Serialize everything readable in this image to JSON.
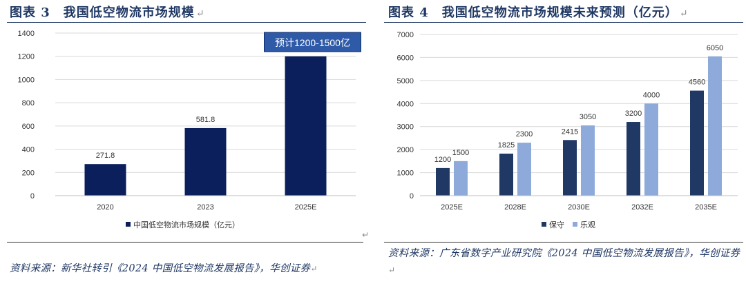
{
  "left": {
    "figure_title": "图表 3　我国低空物流市场规模",
    "source": "资料来源：新华社转引《2024 中国低空物流发展报告》，华创证券",
    "callout": "预计1200-1500亿"
  },
  "right": {
    "figure_title": "图表 4　我国低空物流市场规模未来预测（亿元）",
    "source": "资料来源：广东省数字产业研究院《2024 中国低空物流发展报告》，华创证券"
  },
  "colors": {
    "navy": "#0b1f5c",
    "dark_blue": "#1f3864",
    "light_blue": "#8eaadb",
    "callout_bg": "#2e5aa8"
  },
  "chart_data": [
    {
      "type": "bar",
      "categories": [
        "2020",
        "2023",
        "2025E"
      ],
      "series": [
        {
          "name": "中国低空物流市场规模（亿元）",
          "values": [
            271.8,
            581.8,
            1200
          ]
        }
      ],
      "data_labels": [
        "271.8",
        "581.8",
        ""
      ],
      "yticks": [
        "0",
        "200",
        "400",
        "600",
        "800",
        "1000",
        "1200",
        "1400"
      ],
      "ylim": [
        0,
        1400
      ],
      "grid": true,
      "legend": "bottom"
    },
    {
      "type": "bar",
      "categories": [
        "2025E",
        "2028E",
        "2030E",
        "2032E",
        "2035E"
      ],
      "series": [
        {
          "name": "保守",
          "values": [
            1200,
            1825,
            2415,
            3200,
            4560
          ]
        },
        {
          "name": "乐观",
          "values": [
            1500,
            2300,
            3050,
            4000,
            6050
          ]
        }
      ],
      "yticks": [
        "0",
        "1000",
        "2000",
        "3000",
        "4000",
        "5000",
        "6000",
        "7000"
      ],
      "ylim": [
        0,
        7000
      ],
      "grid": true,
      "legend": "bottom"
    }
  ]
}
